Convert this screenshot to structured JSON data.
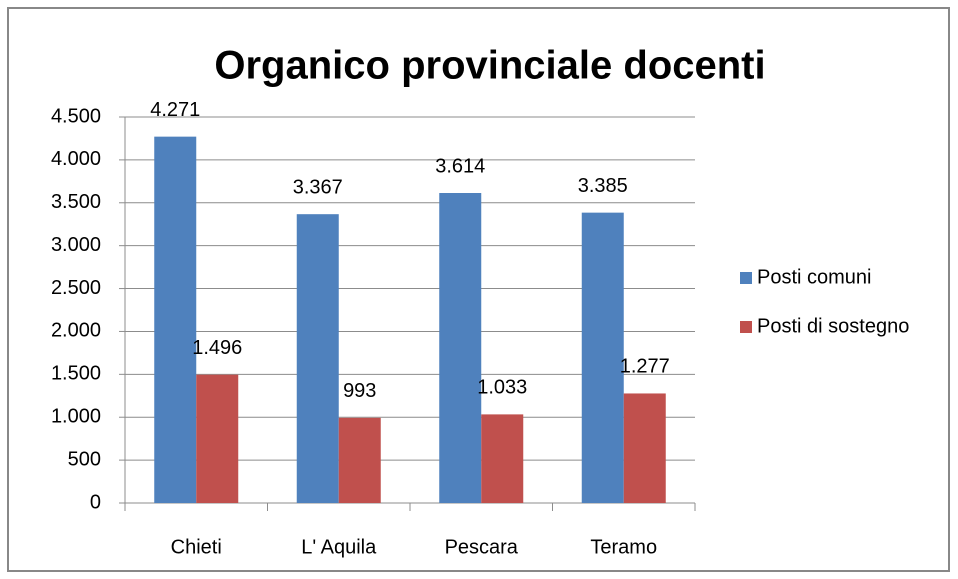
{
  "chart_data": {
    "type": "bar",
    "title": "Organico provinciale docenti",
    "categories": [
      "Chieti",
      "L' Aquila",
      "Pescara",
      "Teramo"
    ],
    "series": [
      {
        "name": "Posti comuni",
        "color": "#4f81bd",
        "values": [
          4271,
          3367,
          3614,
          3385
        ],
        "value_labels": [
          "4.271",
          "3.367",
          "3.614",
          "3.385"
        ]
      },
      {
        "name": "Posti di sostegno",
        "color": "#c0504d",
        "values": [
          1496,
          993,
          1033,
          1277
        ],
        "value_labels": [
          "1.496",
          "993",
          "1.033",
          "1.277"
        ]
      }
    ],
    "ylim": [
      0,
      4500
    ],
    "yticks": [
      0,
      500,
      {
        "value": 1000,
        "label": "1.000"
      },
      {
        "value": 1500,
        "label": "1.500"
      },
      {
        "value": 2000,
        "label": "2.000"
      },
      {
        "value": 2500,
        "label": "2.500"
      },
      {
        "value": 3000,
        "label": "3.000"
      },
      {
        "value": 3500,
        "label": "3.500"
      },
      {
        "value": 4000,
        "label": "4.000"
      },
      {
        "value": 4500,
        "label": "4.500"
      }
    ],
    "grid": true,
    "legend": "right"
  }
}
